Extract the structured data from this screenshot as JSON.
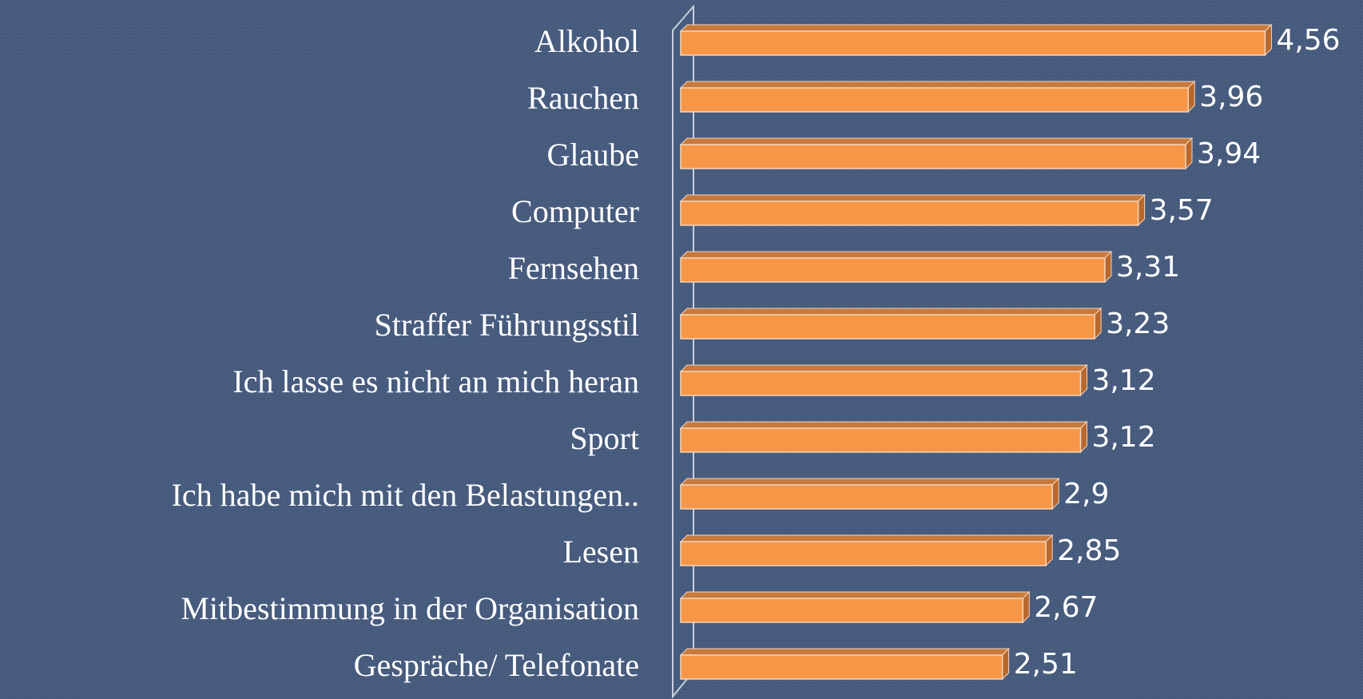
{
  "chart_data": {
    "type": "bar",
    "orientation": "horizontal",
    "categories": [
      "Alkohol",
      "Rauchen",
      "Glaube",
      "Computer",
      "Fernsehen",
      "Straffer Führungsstil",
      "Ich lasse es nicht an mich heran",
      "Sport",
      "Ich habe mich mit den Belastungen..",
      "Lesen",
      "Mitbestimmung in der Organisation",
      "Gespräche/ Telefonate"
    ],
    "values": [
      4.56,
      3.96,
      3.94,
      3.57,
      3.31,
      3.23,
      3.12,
      3.12,
      2.9,
      2.85,
      2.67,
      2.51
    ],
    "value_labels": [
      "4,56",
      "3,96",
      "3,94",
      "3,57",
      "3,31",
      "3,23",
      "3,12",
      "3,12",
      "2,9",
      "2,85",
      "2,67",
      "2,51"
    ],
    "color": "#f79646",
    "xlim": [
      0,
      5
    ]
  }
}
